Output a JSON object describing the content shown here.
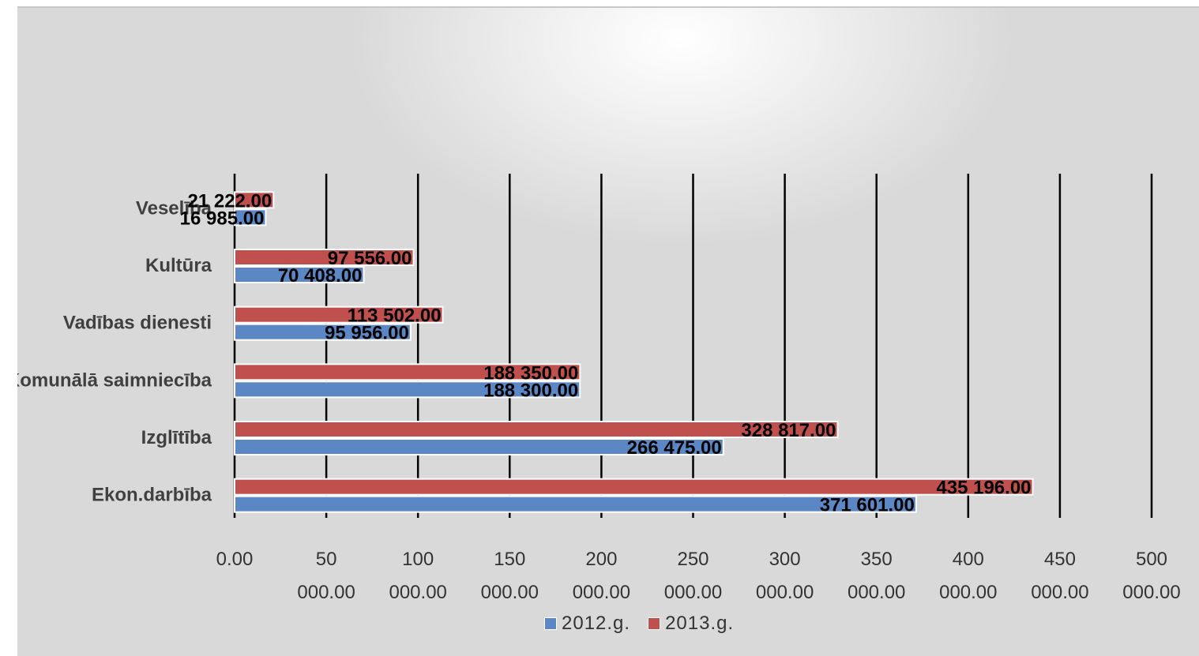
{
  "chart_data": {
    "type": "bar",
    "orientation": "horizontal",
    "categories": [
      "Veselība",
      "Kultūra",
      "Vadības dienesti",
      "Komunālā saimniecība",
      "Izglītība",
      "Ekon.darbība"
    ],
    "series": [
      {
        "name": "2012.g.",
        "color": "#5b87c5",
        "values": [
          16985,
          70408,
          95956,
          188300,
          266475,
          371601
        ],
        "labels": [
          "16 985.00",
          "70 408.00",
          "95 956.00",
          "188 300.00",
          "266 475.00",
          "371 601.00"
        ]
      },
      {
        "name": "2013.g.",
        "color": "#c0504d",
        "values": [
          21222,
          97556,
          113502,
          188350,
          328817,
          435196
        ],
        "labels": [
          "21 222.00",
          "97 556.00",
          "113 502.00",
          "188 350.00",
          "328 817.00",
          "435 196.00"
        ]
      }
    ],
    "xlim": [
      0,
      500000
    ],
    "ticks": [
      0,
      50000,
      100000,
      150000,
      200000,
      250000,
      300000,
      350000,
      400000,
      450000,
      500000
    ],
    "tick_labels": [
      [
        "0.00",
        ""
      ],
      [
        "50",
        "000.00"
      ],
      [
        "100",
        "000.00"
      ],
      [
        "150",
        "000.00"
      ],
      [
        "200",
        "000.00"
      ],
      [
        "250",
        "000.00"
      ],
      [
        "300",
        "000.00"
      ],
      [
        "350",
        "000.00"
      ],
      [
        "400",
        "000.00"
      ],
      [
        "450",
        "000.00"
      ],
      [
        "500",
        "000.00"
      ]
    ],
    "grid": true,
    "legend_position": "bottom",
    "title": "",
    "xlabel": "",
    "ylabel": ""
  },
  "legend": {
    "series_2012": "2012.g.",
    "series_2013": "2013.g.",
    "color_2012": "#5b87c5",
    "color_2013": "#c0504d"
  }
}
